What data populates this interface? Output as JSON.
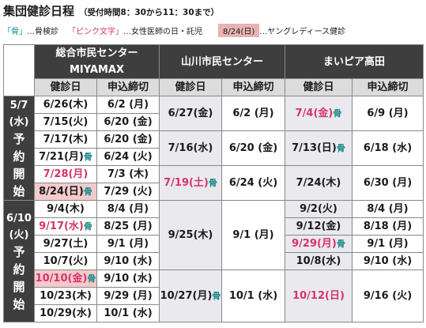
{
  "title": "集団健診日程",
  "subtitle": "（受付時間8：30から11：30まで）",
  "legend": {
    "bone_mark": "「骨」",
    "bone_desc": "…骨検診",
    "pink_mark": "「ピンク文字」",
    "pink_desc": "…女性医師の日・託児",
    "young_mark": "8/24(日)",
    "young_desc": "…ヤングレディース健診"
  },
  "venues": [
    {
      "name": "総合市民センター",
      "name2": "MIYAMAX"
    },
    {
      "name": "山川市民センター",
      "name2": ""
    },
    {
      "name": "まいピア高田",
      "name2": ""
    }
  ],
  "sub_headers": {
    "exam": "健診日",
    "deadline": "申込締切"
  },
  "periods": [
    {
      "date": "5/7",
      "dow": "(水)",
      "label": [
        "予",
        "約",
        "開",
        "始"
      ]
    },
    {
      "date": "6/10",
      "dow": "(火)",
      "label": [
        "予",
        "約",
        "開",
        "始"
      ]
    }
  ],
  "miyamax": [
    {
      "exam": "6/26(木)",
      "bone": "",
      "deadline": "6/2 (月)"
    },
    {
      "exam": "7/15(火)",
      "bone": "",
      "deadline": "6/20 (金)"
    },
    {
      "exam": "7/17(木)",
      "bone": "",
      "deadline": "6/20 (金)"
    },
    {
      "exam": "7/21(月)",
      "bone": "骨",
      "deadline": "6/24 (火)"
    },
    {
      "exam": "7/28(月)",
      "bone": "",
      "deadline": "7/3 (木)"
    },
    {
      "exam": "8/24(日)",
      "bone": "骨",
      "deadline": "7/29 (火)"
    },
    {
      "exam": "9/4(木)",
      "bone": "",
      "deadline": "8/4 (月)"
    },
    {
      "exam": "9/17(水)",
      "bone": "骨",
      "deadline": "8/25 (月)"
    },
    {
      "exam": "9/27(土)",
      "bone": "",
      "deadline": "9/1 (月)"
    },
    {
      "exam": "10/7(火)",
      "bone": "",
      "deadline": "9/10 (水)"
    },
    {
      "exam": "10/10(金)",
      "bone": "骨",
      "deadline": "9/10 (水)"
    },
    {
      "exam": "10/23(木)",
      "bone": "",
      "deadline": "9/29 (月)"
    },
    {
      "exam": "10/29(水)",
      "bone": "",
      "deadline": "10/1 (水)"
    }
  ],
  "yamakawa": [
    {
      "exam": "6/27(金)",
      "bone": "",
      "deadline": "6/2 (月)"
    },
    {
      "exam": "7/16(水)",
      "bone": "",
      "deadline": "6/20 (金)"
    },
    {
      "exam": "7/19(土)",
      "bone": "骨",
      "deadline": "6/24 (火)"
    },
    {
      "exam": "9/25(木)",
      "bone": "",
      "deadline": "9/1 (月)"
    },
    {
      "exam": "10/27(月)",
      "bone": "骨",
      "deadline": "10/1 (水)"
    }
  ],
  "maipia": [
    {
      "exam": "7/4(金)",
      "bone": "骨",
      "deadline": "6/9 (月)"
    },
    {
      "exam": "7/13(日)",
      "bone": "骨",
      "deadline": "6/18 (水)"
    },
    {
      "exam": "7/24(木)",
      "bone": "",
      "deadline": "6/30 (月)"
    },
    {
      "exam": "9/2(火)",
      "bone": "",
      "deadline": "8/4 (月)"
    },
    {
      "exam": "9/12(金)",
      "bone": "",
      "deadline": "8/18 (月)"
    },
    {
      "exam": "9/29(月)",
      "bone": "骨",
      "deadline": "9/1 (月)"
    },
    {
      "exam": "10/8(水)",
      "bone": "",
      "deadline": "9/10 (水)"
    },
    {
      "exam": "10/12(日)",
      "bone": "",
      "deadline": "9/16 (火)"
    }
  ],
  "colors": {
    "pink": "#d6336c",
    "teal": "#1a8a8a",
    "header": "#3e3e3e",
    "highlight": "#f3caca"
  }
}
